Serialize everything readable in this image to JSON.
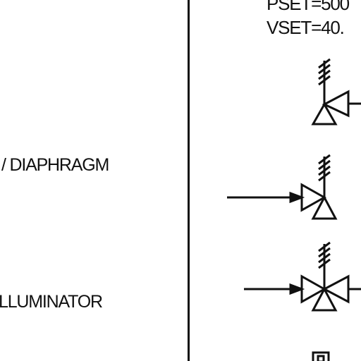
{
  "header": {
    "pset_text": "PSET=500",
    "vset_text": "VSET=40."
  },
  "legend": {
    "diaphragm_label": "/ DIAPHRAGM",
    "illuminator_label": "LLUMINATOR"
  },
  "symbols": [
    {
      "name": "valve-side-actuated-icon"
    },
    {
      "name": "valve-angle-diaphragm-icon"
    },
    {
      "name": "valve-three-way-illuminator-icon"
    },
    {
      "name": "valve-box-partial-icon"
    }
  ]
}
